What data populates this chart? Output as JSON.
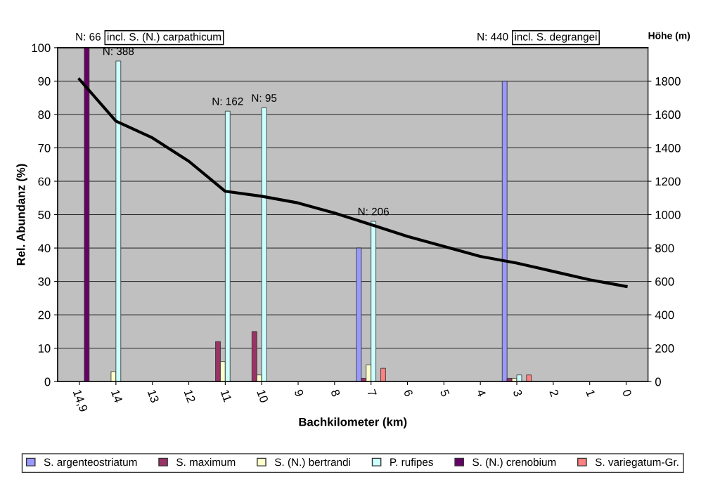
{
  "chart_data": {
    "type": "bar",
    "xlabel": "Bachkilometer (km)",
    "ylabel": "Rel. Abundanz (%)",
    "y2label": "Höhe (m)",
    "categories": [
      "14,9",
      "14",
      "13",
      "12",
      "11",
      "10",
      "9",
      "8",
      "7",
      "6",
      "5",
      "4",
      "3",
      "2",
      "1",
      "0"
    ],
    "series": [
      {
        "name": "S. argenteostriatum",
        "color": "#9999ff",
        "values": [
          null,
          null,
          null,
          null,
          null,
          null,
          null,
          null,
          40,
          null,
          null,
          null,
          90,
          null,
          null,
          null
        ]
      },
      {
        "name": "S. maximum",
        "color": "#993366",
        "values": [
          null,
          null,
          null,
          null,
          12,
          15,
          null,
          null,
          1,
          null,
          null,
          null,
          1,
          null,
          null,
          null
        ]
      },
      {
        "name": "S. (N.) bertrandi",
        "color": "#ffffcc",
        "values": [
          null,
          3,
          null,
          null,
          6,
          2,
          null,
          null,
          5,
          null,
          null,
          null,
          1,
          null,
          null,
          null
        ]
      },
      {
        "name": "P. rufipes",
        "color": "#ccffff",
        "values": [
          null,
          96,
          null,
          null,
          81,
          82,
          null,
          null,
          48,
          null,
          null,
          null,
          2,
          null,
          null,
          null
        ]
      },
      {
        "name": "S. (N.) crenobium",
        "color": "#660066",
        "values": [
          100,
          null,
          null,
          null,
          null,
          null,
          null,
          null,
          null,
          null,
          null,
          null,
          null,
          null,
          null,
          null
        ]
      },
      {
        "name": "S. variegatum-Gr.",
        "color": "#ff8080",
        "values": [
          null,
          null,
          null,
          null,
          null,
          null,
          null,
          null,
          4,
          null,
          null,
          null,
          2,
          null,
          null,
          null
        ]
      },
      {
        "type": "line",
        "axis": "y2",
        "color": "#000000",
        "values": [
          1810,
          1560,
          1460,
          1320,
          1140,
          1110,
          1070,
          1010,
          940,
          870,
          810,
          750,
          710,
          660,
          610,
          570
        ]
      }
    ],
    "ylim": [
      0,
      100
    ],
    "yticks": [
      0,
      10,
      20,
      30,
      40,
      50,
      60,
      70,
      80,
      90,
      100
    ],
    "y2lim": [
      0,
      2000
    ],
    "y2ticks": [
      0,
      200,
      400,
      600,
      800,
      1000,
      1200,
      1400,
      1600,
      1800
    ],
    "annotations": [
      "N: 66",
      "incl. S. (N.) carpathicum",
      {
        "text": "N: 388",
        "x": "14",
        "y": 96
      },
      {
        "text": "N: 162",
        "x": "11",
        "y": 81
      },
      {
        "text": "N: 95",
        "x": "10",
        "y": 82
      },
      {
        "text": "N: 206",
        "x": "7",
        "y": 48
      },
      "N: 440",
      "incl. S. degrangei"
    ],
    "grid": "y",
    "legend": "bottom"
  }
}
